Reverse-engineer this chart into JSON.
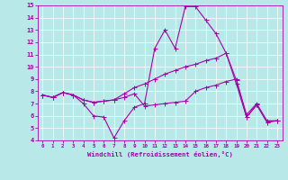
{
  "xlabel": "Windchill (Refroidissement éolien,°C)",
  "xlim": [
    -0.5,
    23.5
  ],
  "ylim": [
    4,
    15
  ],
  "xticks": [
    0,
    1,
    2,
    3,
    4,
    5,
    6,
    7,
    8,
    9,
    10,
    11,
    12,
    13,
    14,
    15,
    16,
    17,
    18,
    19,
    20,
    21,
    22,
    23
  ],
  "yticks": [
    4,
    5,
    6,
    7,
    8,
    9,
    10,
    11,
    12,
    13,
    14,
    15
  ],
  "line_color": "#aa00aa",
  "bg_color": "#b8e8e8",
  "line1_x": [
    0,
    1,
    2,
    3,
    4,
    5,
    6,
    7,
    8,
    9,
    10,
    11,
    12,
    13,
    14,
    15,
    16,
    17,
    18,
    19,
    20,
    21,
    22,
    23
  ],
  "line1_y": [
    7.7,
    7.5,
    7.9,
    7.7,
    7.0,
    6.0,
    5.9,
    4.2,
    5.6,
    6.7,
    7.0,
    11.5,
    13.0,
    11.5,
    14.9,
    14.9,
    13.8,
    12.7,
    11.1,
    8.6,
    5.9,
    6.9,
    5.5,
    5.6
  ],
  "line2_x": [
    0,
    1,
    2,
    3,
    4,
    5,
    6,
    7,
    8,
    9,
    10,
    11,
    12,
    13,
    14,
    15,
    16,
    17,
    18,
    19,
    20,
    21,
    22,
    23
  ],
  "line2_y": [
    7.7,
    7.5,
    7.9,
    7.7,
    7.3,
    7.1,
    7.2,
    7.3,
    7.8,
    8.3,
    8.6,
    9.0,
    9.4,
    9.7,
    10.0,
    10.2,
    10.5,
    10.7,
    11.1,
    8.9,
    6.1,
    7.0,
    5.6,
    5.6
  ],
  "line3_x": [
    0,
    1,
    2,
    3,
    4,
    5,
    6,
    7,
    8,
    9,
    10,
    11,
    12,
    13,
    14,
    15,
    16,
    17,
    18,
    19,
    20,
    21,
    22,
    23
  ],
  "line3_y": [
    7.7,
    7.5,
    7.9,
    7.7,
    7.3,
    7.1,
    7.2,
    7.3,
    7.5,
    7.8,
    6.8,
    6.9,
    7.0,
    7.1,
    7.2,
    8.0,
    8.3,
    8.5,
    8.8,
    9.0,
    5.9,
    6.9,
    5.5,
    5.6
  ],
  "marker_size": 2.0,
  "line_width": 0.8
}
